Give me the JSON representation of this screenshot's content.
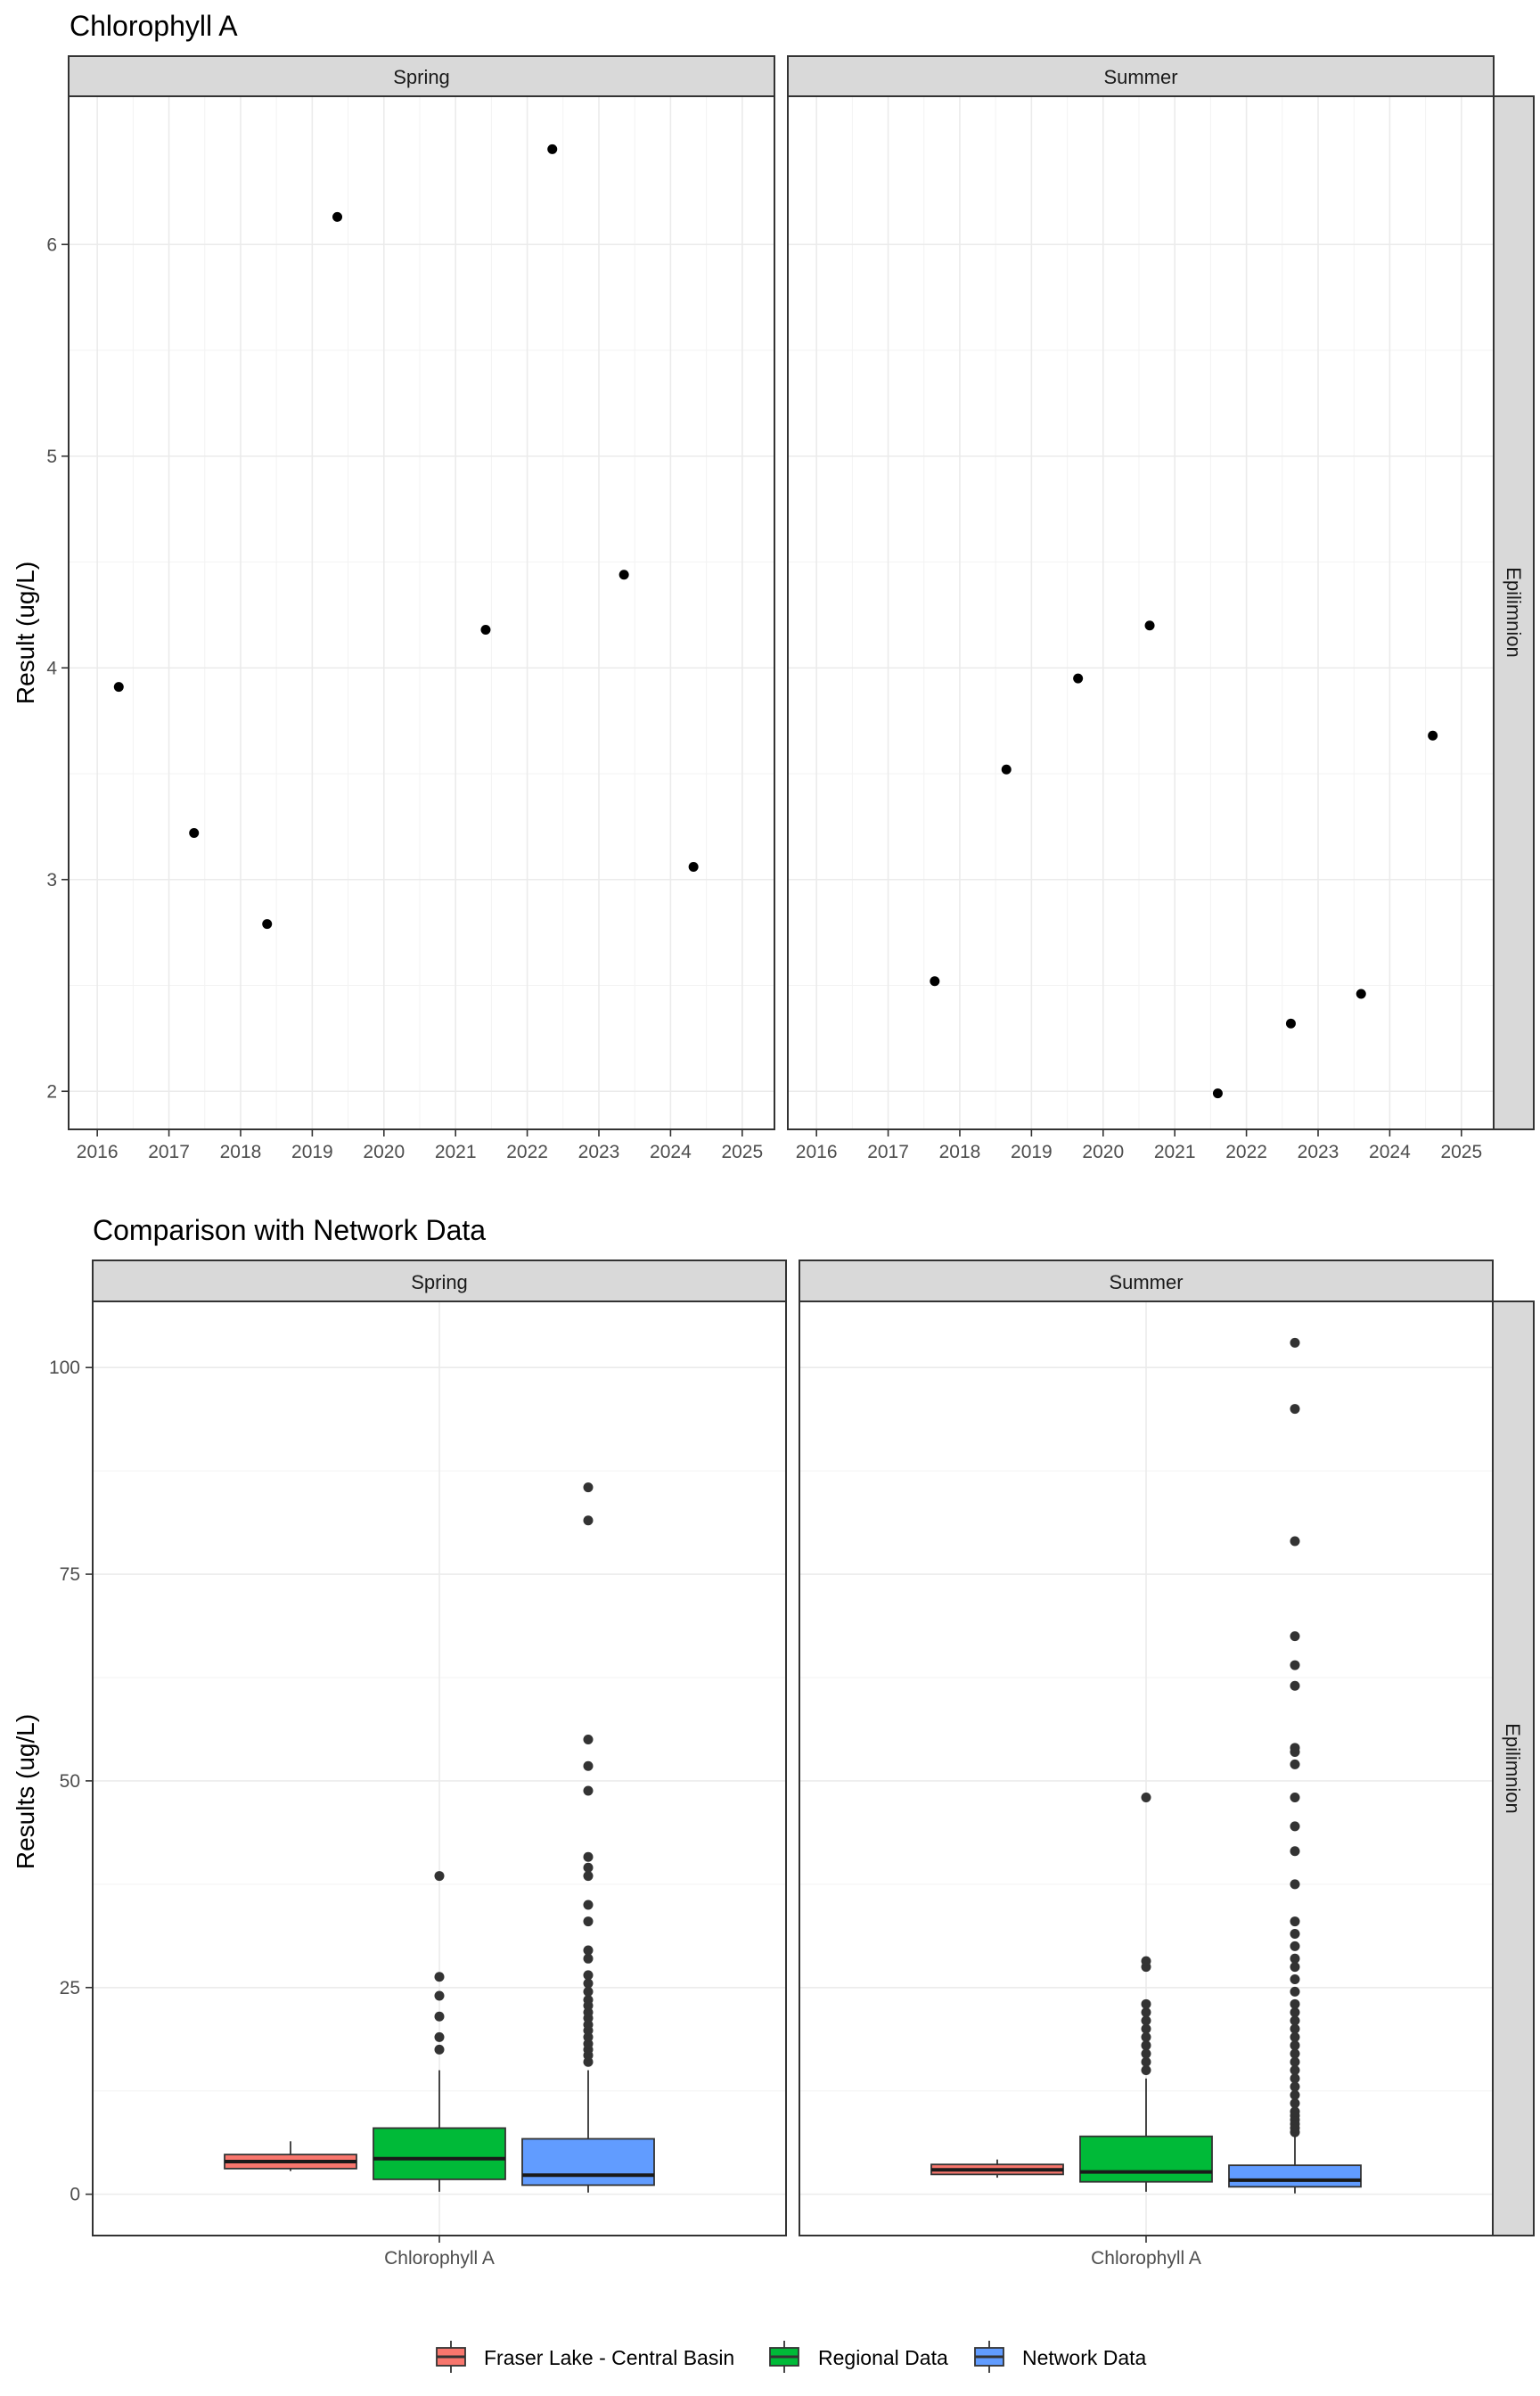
{
  "colors": {
    "fraser": "#f8766d",
    "regional": "#00ba38",
    "network": "#619cff",
    "point": "#000000",
    "outlier": "#333333"
  },
  "chart_data": [
    {
      "type": "scatter",
      "title": "Chlorophyll A",
      "xlabel": "",
      "ylabel": "Result (ug/L)",
      "xticks": [
        "2016",
        "2017",
        "2018",
        "2019",
        "2020",
        "2021",
        "2022",
        "2023",
        "2024",
        "2025"
      ],
      "xlim": [
        2015.6,
        2025.45
      ],
      "ylim": [
        1.82,
        6.7
      ],
      "yticks": [
        2,
        3,
        4,
        5,
        6
      ],
      "grid": true,
      "row_strip": "Epilimnion",
      "facets": [
        {
          "name": "Spring",
          "points": [
            {
              "x": 2016.3,
              "y": 3.91
            },
            {
              "x": 2017.35,
              "y": 3.22
            },
            {
              "x": 2018.37,
              "y": 2.79
            },
            {
              "x": 2019.35,
              "y": 6.13
            },
            {
              "x": 2021.42,
              "y": 4.18
            },
            {
              "x": 2022.35,
              "y": 6.45
            },
            {
              "x": 2023.35,
              "y": 4.44
            },
            {
              "x": 2024.32,
              "y": 3.06
            }
          ]
        },
        {
          "name": "Summer",
          "points": [
            {
              "x": 2017.65,
              "y": 2.52
            },
            {
              "x": 2018.65,
              "y": 3.52
            },
            {
              "x": 2019.65,
              "y": 3.95
            },
            {
              "x": 2020.65,
              "y": 4.2
            },
            {
              "x": 2021.6,
              "y": 1.99
            },
            {
              "x": 2022.62,
              "y": 2.32
            },
            {
              "x": 2023.6,
              "y": 2.46
            },
            {
              "x": 2024.6,
              "y": 3.68
            }
          ]
        }
      ]
    },
    {
      "type": "box",
      "title": "Comparison with Network Data",
      "xlabel": "",
      "ylabel": "Results (ug/L)",
      "category": "Chlorophyll A",
      "ylim": [
        -5,
        108
      ],
      "yticks": [
        0,
        25,
        50,
        75,
        100
      ],
      "grid": true,
      "row_strip": "Epilimnion",
      "legend": {
        "position": "bottom",
        "entries": [
          "Fraser Lake - Central Basin",
          "Regional Data",
          "Network Data"
        ]
      },
      "facets": [
        {
          "name": "Spring",
          "boxes": [
            {
              "series": "Fraser Lake - Central Basin",
              "min": 2.8,
              "q1": 3.1,
              "median": 3.95,
              "q3": 4.8,
              "max": 6.4,
              "outliers": []
            },
            {
              "series": "Regional Data",
              "min": 0.3,
              "q1": 1.8,
              "median": 4.3,
              "q3": 8.0,
              "max": 15.0,
              "outliers": [
                17.5,
                19.0,
                21.5,
                24.0,
                26.3,
                38.5
              ]
            },
            {
              "series": "Network Data",
              "min": 0.2,
              "q1": 1.1,
              "median": 2.3,
              "q3": 6.7,
              "max": 15.0,
              "outliers": [
                16.0,
                16.8,
                17.5,
                18.2,
                19.0,
                19.8,
                20.5,
                21.3,
                22.0,
                22.8,
                23.5,
                24.5,
                25.5,
                26.5,
                28.5,
                29.5,
                33.0,
                35.0,
                38.5,
                39.5,
                40.8,
                48.8,
                51.8,
                55.0,
                81.5,
                85.5
              ]
            }
          ]
        },
        {
          "name": "Summer",
          "boxes": [
            {
              "series": "Fraser Lake - Central Basin",
              "min": 2.0,
              "q1": 2.4,
              "median": 2.95,
              "q3": 3.6,
              "max": 4.2,
              "outliers": []
            },
            {
              "series": "Regional Data",
              "min": 0.3,
              "q1": 1.5,
              "median": 2.7,
              "q3": 7.0,
              "max": 14.0,
              "outliers": [
                15.0,
                16.0,
                17.0,
                18.0,
                19.0,
                20.0,
                21.0,
                22.0,
                23.0,
                27.5,
                28.2,
                48.0
              ]
            },
            {
              "series": "Network Data",
              "min": 0.1,
              "q1": 0.9,
              "median": 1.7,
              "q3": 3.5,
              "max": 7.2,
              "outliers": [
                7.5,
                8.0,
                8.5,
                9.0,
                9.5,
                10.0,
                11.0,
                12.0,
                13.0,
                14.0,
                15.0,
                16.0,
                17.0,
                18.0,
                19.0,
                20.0,
                21.0,
                22.0,
                23.0,
                24.5,
                26.0,
                27.5,
                28.5,
                30.0,
                31.5,
                33.0,
                37.5,
                41.5,
                44.5,
                48.0,
                52.0,
                53.5,
                54.0,
                61.5,
                64.0,
                67.5,
                79.0,
                95.0,
                103.0
              ]
            }
          ]
        }
      ]
    }
  ]
}
